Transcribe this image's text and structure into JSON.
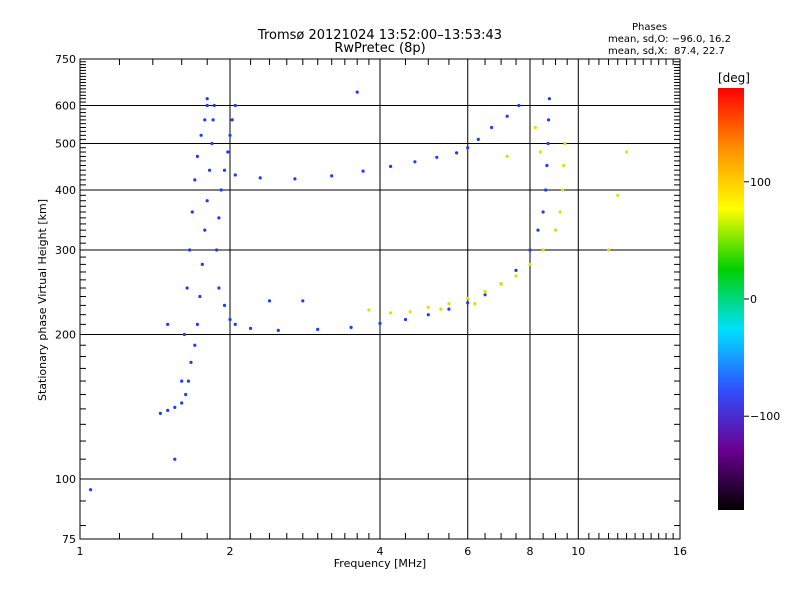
{
  "chart_data": {
    "type": "scatter",
    "title": "Tromsø 20121024 13:52:00–13:53:43",
    "subtitle": "RwPretec (8p)",
    "xlabel": "Frequency [MHz]",
    "ylabel": "Stationary phase Virtual Height [km]",
    "x_scale": "log",
    "y_scale": "log",
    "xlim": [
      1,
      16
    ],
    "ylim": [
      75,
      750
    ],
    "x_ticks": [
      1,
      2,
      4,
      6,
      8,
      10,
      16
    ],
    "x_tick_labels": [
      "1",
      "2",
      "4",
      "6",
      "8",
      "10",
      "16"
    ],
    "y_ticks": [
      75,
      100,
      200,
      300,
      400,
      500,
      600,
      750
    ],
    "y_tick_labels": [
      "75",
      "100",
      "200",
      "300",
      "400",
      "500",
      "600",
      "750"
    ],
    "grid": true,
    "phases": {
      "title": "Phases",
      "o_mode": "mean, sd,O: −96.0, 16.2",
      "x_mode": "mean, sd,X:  87.4, 22.7"
    },
    "colorbar": {
      "label": "[deg]",
      "tick_labels": [
        "100",
        "0",
        "−100"
      ],
      "tick_values": [
        100,
        0,
        -100
      ],
      "range": [
        -180,
        180
      ],
      "colormap": [
        "#000000",
        "#6a0090",
        "#3050ff",
        "#00e0ff",
        "#00d000",
        "#ffff00",
        "#ff9000",
        "#ff0000"
      ]
    },
    "series": [
      {
        "mode": "O",
        "color": "#1a3cff",
        "points": [
          [
            1.45,
            137
          ],
          [
            1.5,
            139
          ],
          [
            1.55,
            141
          ],
          [
            1.6,
            144
          ],
          [
            1.63,
            150
          ],
          [
            1.65,
            160
          ],
          [
            1.67,
            175
          ],
          [
            1.7,
            190
          ],
          [
            1.72,
            210
          ],
          [
            1.74,
            240
          ],
          [
            1.76,
            280
          ],
          [
            1.78,
            330
          ],
          [
            1.8,
            380
          ],
          [
            1.82,
            440
          ],
          [
            1.84,
            500
          ],
          [
            1.85,
            560
          ],
          [
            1.86,
            600
          ],
          [
            1.6,
            160
          ],
          [
            1.62,
            200
          ],
          [
            1.64,
            250
          ],
          [
            1.66,
            300
          ],
          [
            1.68,
            360
          ],
          [
            1.7,
            420
          ],
          [
            1.72,
            470
          ],
          [
            1.75,
            520
          ],
          [
            1.78,
            560
          ],
          [
            1.8,
            600
          ],
          [
            1.88,
            300
          ],
          [
            1.9,
            350
          ],
          [
            1.92,
            400
          ],
          [
            1.95,
            440
          ],
          [
            1.98,
            480
          ],
          [
            2.0,
            520
          ],
          [
            2.02,
            560
          ],
          [
            2.05,
            600
          ],
          [
            1.9,
            250
          ],
          [
            1.95,
            230
          ],
          [
            2.0,
            215
          ],
          [
            2.05,
            210
          ],
          [
            2.2,
            206
          ],
          [
            2.5,
            204
          ],
          [
            3.0,
            205
          ],
          [
            3.5,
            207
          ],
          [
            4.0,
            211
          ],
          [
            4.5,
            215
          ],
          [
            5.0,
            220
          ],
          [
            5.5,
            226
          ],
          [
            6.0,
            233
          ],
          [
            6.5,
            242
          ],
          [
            7.0,
            255
          ],
          [
            7.5,
            272
          ],
          [
            8.0,
            300
          ],
          [
            8.3,
            330
          ],
          [
            8.5,
            360
          ],
          [
            8.6,
            400
          ],
          [
            8.65,
            450
          ],
          [
            8.7,
            500
          ],
          [
            8.72,
            560
          ],
          [
            8.75,
            620
          ],
          [
            2.05,
            430
          ],
          [
            2.3,
            424
          ],
          [
            2.7,
            422
          ],
          [
            3.2,
            428
          ],
          [
            3.7,
            438
          ],
          [
            4.2,
            448
          ],
          [
            4.7,
            458
          ],
          [
            5.2,
            468
          ],
          [
            5.7,
            478
          ],
          [
            6.0,
            490
          ],
          [
            6.3,
            510
          ],
          [
            6.7,
            540
          ],
          [
            7.2,
            570
          ],
          [
            7.6,
            600
          ],
          [
            1.05,
            95
          ],
          [
            1.55,
            110
          ],
          [
            1.5,
            210
          ],
          [
            2.4,
            235
          ],
          [
            2.8,
            235
          ],
          [
            3.6,
            640
          ],
          [
            1.8,
            620
          ]
        ]
      },
      {
        "mode": "X",
        "color": "#e0e000",
        "points": [
          [
            3.8,
            225
          ],
          [
            4.2,
            222
          ],
          [
            4.6,
            223
          ],
          [
            5.0,
            228
          ],
          [
            5.5,
            232
          ],
          [
            6.0,
            238
          ],
          [
            6.5,
            246
          ],
          [
            7.0,
            255
          ],
          [
            7.5,
            265
          ],
          [
            8.0,
            280
          ],
          [
            8.5,
            300
          ],
          [
            9.0,
            330
          ],
          [
            9.2,
            360
          ],
          [
            9.3,
            400
          ],
          [
            9.35,
            450
          ],
          [
            9.4,
            500
          ],
          [
            8.4,
            480
          ],
          [
            8.2,
            540
          ],
          [
            7.2,
            470
          ],
          [
            12.5,
            480
          ],
          [
            12.0,
            390
          ],
          [
            11.5,
            300
          ],
          [
            6.2,
            232
          ],
          [
            5.3,
            226
          ]
        ]
      }
    ]
  }
}
